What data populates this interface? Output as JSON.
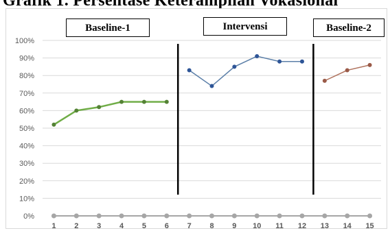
{
  "title": "Grafik 1. Persentase Keterampilan Vokasional",
  "phases": [
    {
      "label": "Baseline-1"
    },
    {
      "label": "Intervensi"
    },
    {
      "label": "Baseline-2"
    }
  ],
  "colors": {
    "baseline1": "#70ad47",
    "baseline1_marker": "#548235",
    "intervensi": "#5b7fa8",
    "intervensi_marker": "#2e5597",
    "baseline2": "#b0735e",
    "baseline2_marker": "#9a5a48",
    "zero_series": "#a6a6a6",
    "grid": "#d9d9d9"
  },
  "chart_data": {
    "type": "line",
    "title": "Grafik 1. Persentase Keterampilan Vokasional",
    "xlabel": "",
    "ylabel": "",
    "categories": [
      1,
      2,
      3,
      4,
      5,
      6,
      7,
      8,
      9,
      10,
      11,
      12,
      13,
      14,
      15
    ],
    "ylim": [
      0,
      100
    ],
    "y_ticks": [
      "0%",
      "10%",
      "20%",
      "30%",
      "40%",
      "50%",
      "60%",
      "70%",
      "80%",
      "90%",
      "100%"
    ],
    "grid": true,
    "phase_dividers_between": [
      [
        6,
        7
      ],
      [
        12,
        13
      ]
    ],
    "series": [
      {
        "x": [
          1,
          2,
          3,
          4,
          5,
          6
        ],
        "values": [
          52,
          60,
          62,
          65,
          65,
          65
        ]
      },
      {
        "x": [
          7,
          8,
          9,
          10,
          11,
          12
        ],
        "values": [
          83,
          74,
          85,
          91,
          88,
          88
        ]
      },
      {
        "x": [
          13,
          14,
          15
        ],
        "values": [
          77,
          83,
          86
        ]
      },
      {
        "x": [
          1,
          2,
          3,
          4,
          5,
          6,
          7,
          8,
          9,
          10,
          11,
          12,
          13,
          14,
          15
        ],
        "values": [
          0,
          0,
          0,
          0,
          0,
          0,
          0,
          0,
          0,
          0,
          0,
          0,
          0,
          0,
          0
        ]
      }
    ]
  }
}
